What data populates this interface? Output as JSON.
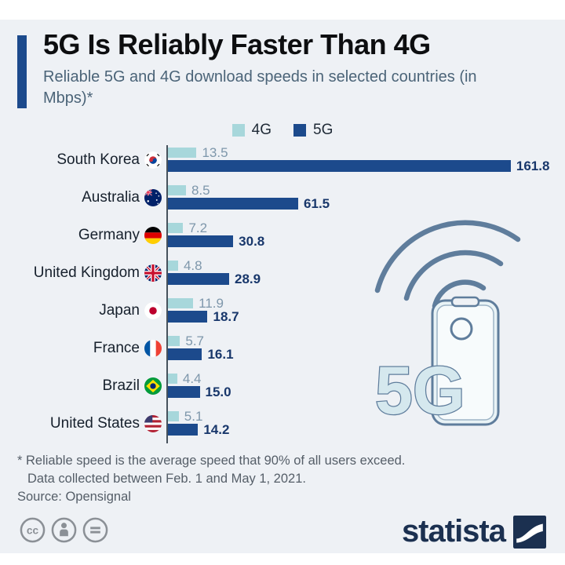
{
  "header": {
    "title": "5G Is Reliably Faster Than 4G",
    "subtitle": "Reliable 5G and 4G download speeds in selected countries (in Mbps)*"
  },
  "legend": {
    "items": [
      {
        "label": "4G",
        "color": "#a7d7db"
      },
      {
        "label": "5G",
        "color": "#1c4a8c"
      }
    ]
  },
  "chart_data": {
    "type": "bar",
    "orientation": "horizontal",
    "title": "5G Is Reliably Faster Than 4G",
    "unit": "Mbps",
    "xlim": [
      0,
      165
    ],
    "grid": false,
    "legend_position": "top-center",
    "categories": [
      "South Korea",
      "Australia",
      "Germany",
      "United Kingdom",
      "Japan",
      "France",
      "Brazil",
      "United States"
    ],
    "flags": [
      "south-korea",
      "australia",
      "germany",
      "united-kingdom",
      "japan",
      "france",
      "brazil",
      "united-states"
    ],
    "series": [
      {
        "name": "4G",
        "color": "#a7d7db",
        "values": [
          13.5,
          8.5,
          7.2,
          4.8,
          11.9,
          5.7,
          4.4,
          5.1
        ]
      },
      {
        "name": "5G",
        "color": "#1c4a8c",
        "values": [
          161.8,
          61.5,
          30.8,
          28.9,
          18.7,
          16.1,
          15.0,
          14.2
        ]
      }
    ]
  },
  "illustration": {
    "label": "5G",
    "icons": [
      "wifi-waves-icon",
      "smartphone-icon"
    ]
  },
  "notes": {
    "footnote_line1": "* Reliable speed is the average speed that 90% of all users exceed.",
    "footnote_line2": "Data collected between Feb. 1 and May 1, 2021.",
    "source": "Source: Opensignal"
  },
  "footer": {
    "brand": "statista",
    "license_icons": [
      "cc-icon",
      "cc-by-icon",
      "cc-nd-icon"
    ]
  },
  "colors": {
    "background": "#eef1f5",
    "accent": "#1c4a8c",
    "bar_4g": "#a7d7db",
    "bar_5g": "#1c4a8c",
    "value_4g": "#7e97ab",
    "value_5g": "#18376b",
    "title_text": "#0d0e10",
    "subtitle_text": "#4b6478",
    "note_text": "#555e68",
    "brand_navy": "#1b3050",
    "illustration_outline": "#5f7d9c",
    "illustration_fill": "#d5e8ee"
  }
}
